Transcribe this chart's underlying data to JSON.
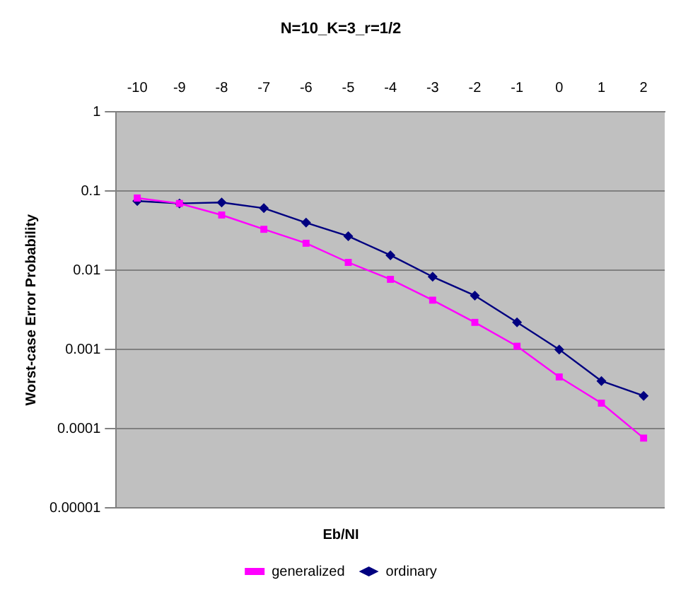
{
  "chart_data": {
    "type": "line",
    "title": "N=10_K=3_r=1/2",
    "xlabel": "Eb/NI",
    "ylabel": "Worst-case Error Probability",
    "categories": [
      "-10",
      "-9",
      "-8",
      "-7",
      "-6",
      "-5",
      "-4",
      "-3",
      "-2",
      "-1",
      "0",
      "1",
      "2"
    ],
    "series": [
      {
        "name": "ordinary",
        "color": "#000080",
        "marker": "diamond",
        "values": [
          0.075,
          0.07,
          0.072,
          0.061,
          0.04,
          0.027,
          0.0155,
          0.0083,
          0.0048,
          0.0022,
          0.001,
          0.0004,
          0.00026
        ]
      },
      {
        "name": "generalized",
        "color": "#ff00ff",
        "marker": "square",
        "values": [
          0.082,
          0.07,
          0.05,
          0.033,
          0.022,
          0.0126,
          0.0077,
          0.0042,
          0.0022,
          0.0011,
          0.00045,
          0.00021,
          7.6e-05
        ]
      }
    ],
    "log": "y",
    "ylim": [
      1e-05,
      1
    ],
    "yticks": [
      {
        "value": 1e-05,
        "label": "0.00001"
      },
      0.0001,
      0.001,
      0.01,
      0.1,
      1
    ],
    "grid": "y",
    "legend": "bottom",
    "line_style": "solid"
  }
}
